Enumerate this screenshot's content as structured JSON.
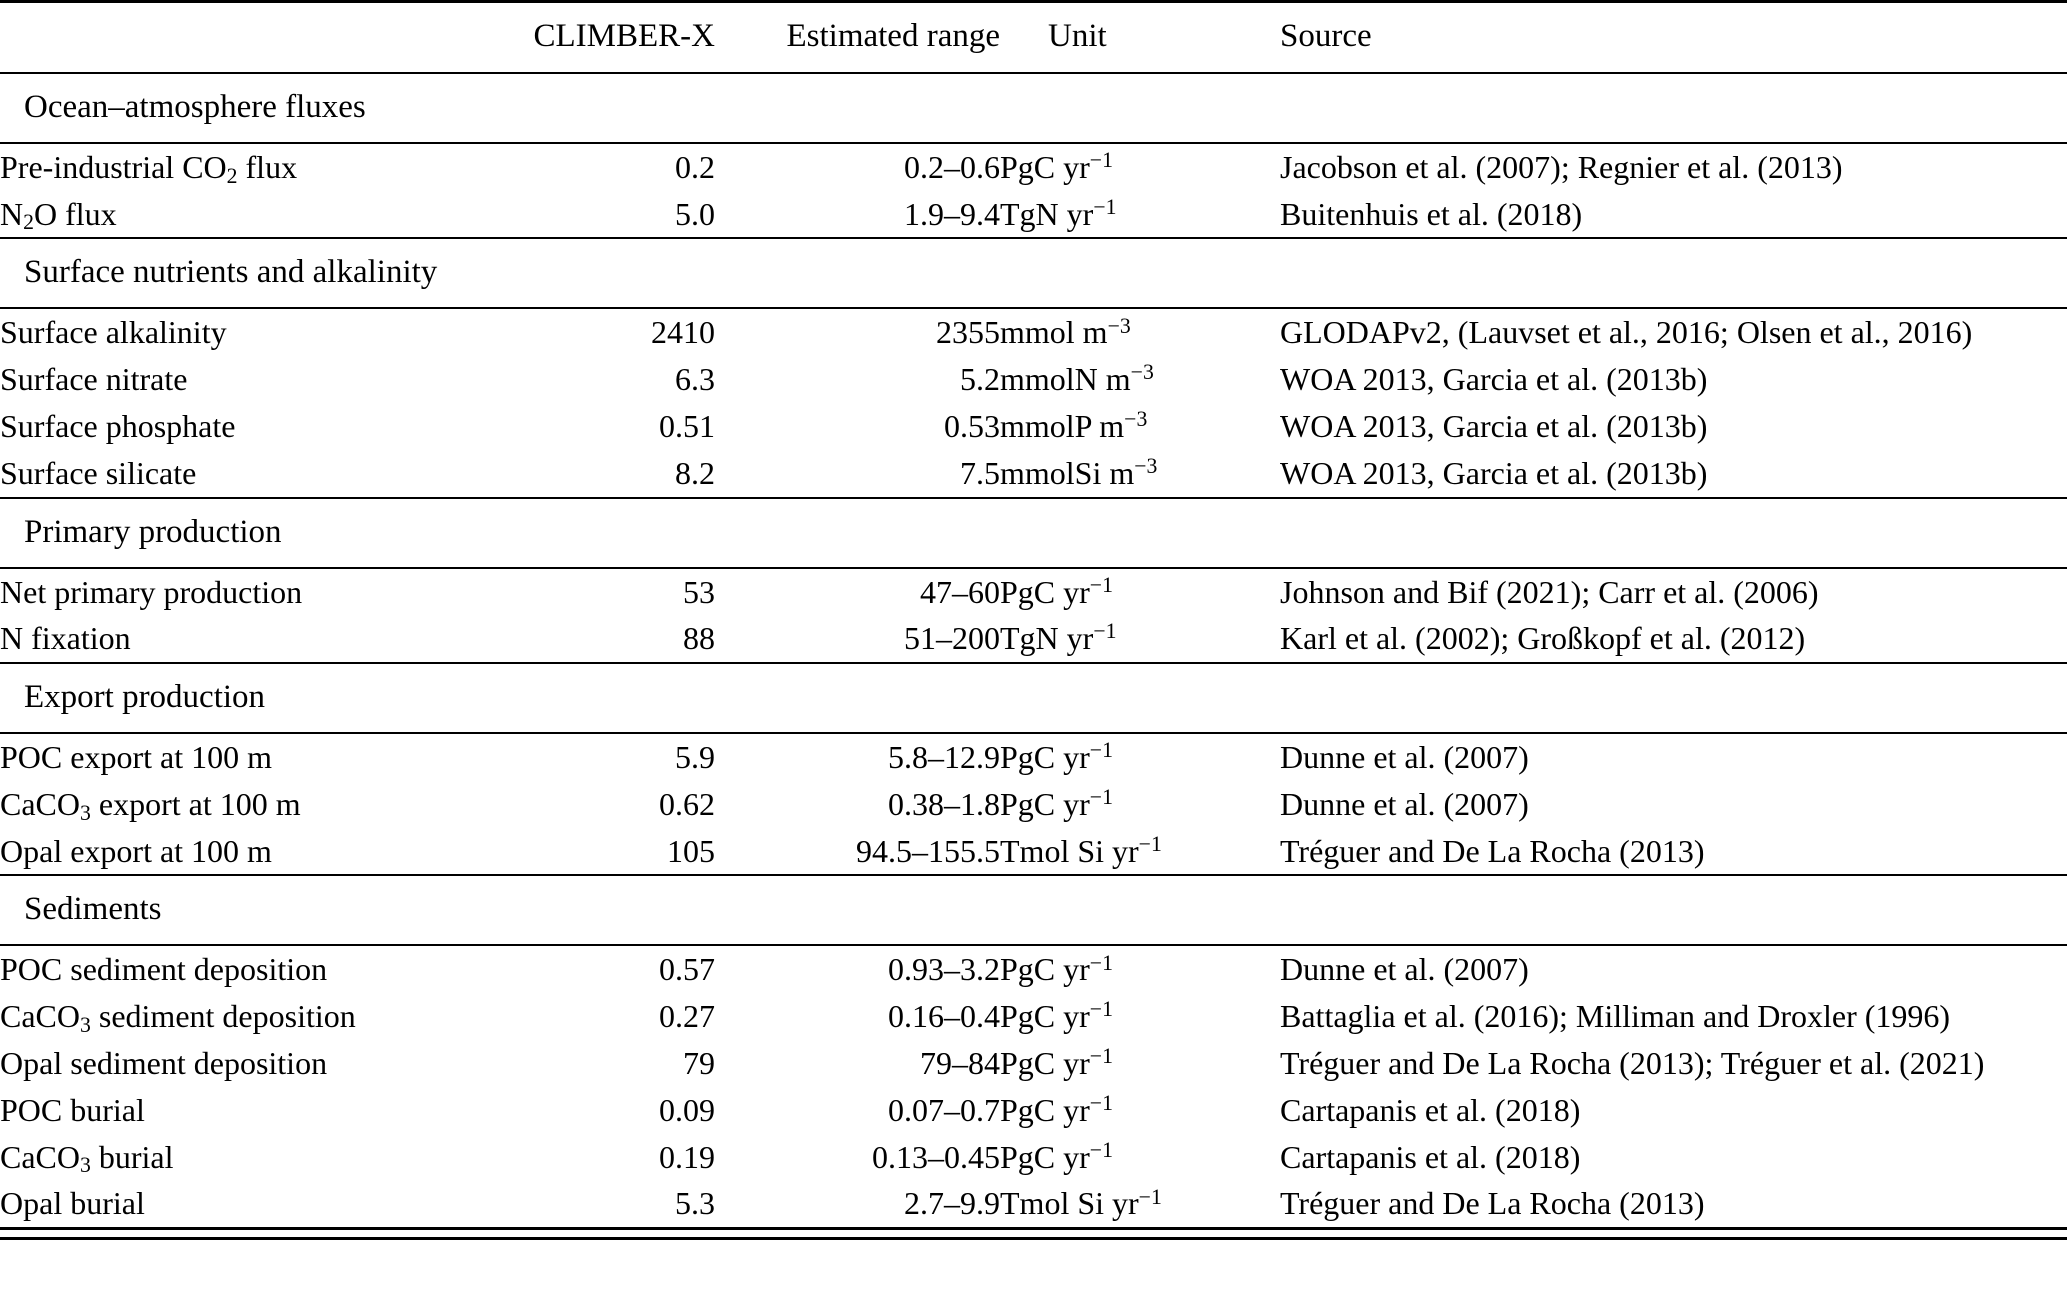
{
  "table": {
    "columns": {
      "label": "",
      "climber": "CLIMBER-X",
      "range": "Estimated range",
      "unit": "Unit",
      "source": "Source"
    },
    "sections": [
      {
        "title": "Ocean–atmosphere fluxes",
        "rows": [
          {
            "label": "Pre-industrial CO_{2} flux",
            "climber": "0.2",
            "range": "0.2–0.6",
            "unit": "PgC yr^{−1}",
            "source": "Jacobson et al. (2007); Regnier et al. (2013)"
          },
          {
            "label": "N_{2}O flux",
            "climber": "5.0",
            "range": "1.9–9.4",
            "unit": "TgN yr^{−1}",
            "source": "Buitenhuis et al. (2018)"
          }
        ]
      },
      {
        "title": "Surface nutrients and alkalinity",
        "rows": [
          {
            "label": "Surface alkalinity",
            "climber": "2410",
            "range": "2355",
            "unit": "mmol m^{−3}",
            "source": "GLODAPv2, (Lauvset et al., 2016; Olsen et al., 2016)"
          },
          {
            "label": "Surface nitrate",
            "climber": "6.3",
            "range": "5.2",
            "unit": "mmolN m^{−3}",
            "source": "WOA 2013, Garcia et al. (2013b)"
          },
          {
            "label": "Surface phosphate",
            "climber": "0.51",
            "range": "0.53",
            "unit": "mmolP m^{−3}",
            "source": "WOA 2013, Garcia et al. (2013b)"
          },
          {
            "label": "Surface silicate",
            "climber": "8.2",
            "range": "7.5",
            "unit": "mmolSi m^{−3}",
            "source": "WOA 2013, Garcia et al. (2013b)"
          }
        ]
      },
      {
        "title": "Primary production",
        "rows": [
          {
            "label": "Net primary production",
            "climber": "53",
            "range": "47–60",
            "unit": "PgC yr^{−1}",
            "source": "Johnson and Bif (2021); Carr et al. (2006)"
          },
          {
            "label": "N fixation",
            "climber": "88",
            "range": "51–200",
            "unit": "TgN yr^{−1}",
            "source": "Karl et al. (2002); Großkopf et al. (2012)"
          }
        ]
      },
      {
        "title": "Export production",
        "rows": [
          {
            "label": "POC export at 100 m",
            "climber": "5.9",
            "range": "5.8–12.9",
            "unit": "PgC yr^{−1}",
            "source": "Dunne et al. (2007)"
          },
          {
            "label": "CaCO_{3} export at 100 m",
            "climber": "0.62",
            "range": "0.38–1.8",
            "unit": "PgC yr^{−1}",
            "source": "Dunne et al. (2007)"
          },
          {
            "label": "Opal export at 100 m",
            "climber": "105",
            "range": "94.5–155.5",
            "unit": "Tmol Si yr^{−1}",
            "source": "Tréguer and De La Rocha (2013)"
          }
        ]
      },
      {
        "title": "Sediments",
        "rows": [
          {
            "label": "POC sediment deposition",
            "climber": "0.57",
            "range": "0.93–3.2",
            "unit": "PgC yr^{−1}",
            "source": "Dunne et al. (2007)"
          },
          {
            "label": "CaCO_{3} sediment deposition",
            "climber": "0.27",
            "range": "0.16–0.4",
            "unit": "PgC yr^{−1}",
            "source": "Battaglia et al. (2016); Milliman and Droxler (1996)"
          },
          {
            "label": "Opal sediment deposition",
            "climber": "79",
            "range": "79–84",
            "unit": "PgC yr^{−1}",
            "source": "Tréguer and De La Rocha (2013); Tréguer et al. (2021)"
          },
          {
            "label": "POC burial",
            "climber": "0.09",
            "range": "0.07–0.7",
            "unit": "PgC yr^{−1}",
            "source": "Cartapanis et al. (2018)"
          },
          {
            "label": "CaCO_{3} burial",
            "climber": "0.19",
            "range": "0.13–0.45",
            "unit": "PgC yr^{−1}",
            "source": "Cartapanis et al. (2018)"
          },
          {
            "label": "Opal burial",
            "climber": "5.3",
            "range": "2.7–9.9",
            "unit": "Tmol Si yr^{−1}",
            "source": "Tréguer and De La Rocha (2013)"
          }
        ]
      }
    ]
  }
}
